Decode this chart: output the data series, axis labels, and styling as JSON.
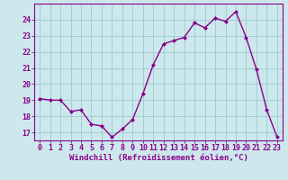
{
  "x": [
    0,
    1,
    2,
    3,
    4,
    5,
    6,
    7,
    8,
    9,
    10,
    11,
    12,
    13,
    14,
    15,
    16,
    17,
    18,
    19,
    20,
    21,
    22,
    23
  ],
  "y": [
    19.1,
    19.0,
    19.0,
    18.3,
    18.4,
    17.5,
    17.4,
    16.7,
    17.2,
    17.8,
    19.4,
    21.2,
    22.5,
    22.7,
    22.9,
    23.8,
    23.5,
    24.1,
    23.9,
    24.5,
    22.9,
    20.9,
    18.4,
    16.7
  ],
  "line_color": "#8B008B",
  "marker": "D",
  "marker_size": 2.0,
  "bg_color": "#cce8ec",
  "grid_color": "#99cccc",
  "xlabel": "Windchill (Refroidissement éolien,°C)",
  "xlabel_fontsize": 6.5,
  "tick_fontsize": 6.0,
  "ylim": [
    16.5,
    25.0
  ],
  "yticks": [
    17,
    18,
    19,
    20,
    21,
    22,
    23,
    24
  ],
  "xticks": [
    0,
    1,
    2,
    3,
    4,
    5,
    6,
    7,
    8,
    9,
    10,
    11,
    12,
    13,
    14,
    15,
    16,
    17,
    18,
    19,
    20,
    21,
    22,
    23
  ],
  "spine_color": "#8B008B",
  "line_width": 1.0
}
